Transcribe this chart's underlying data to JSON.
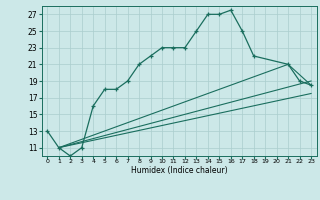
{
  "xlabel": "Humidex (Indice chaleur)",
  "background_color": "#cce8e8",
  "grid_color": "#aacece",
  "line_color": "#1a6e5e",
  "xlim": [
    -0.5,
    23.5
  ],
  "ylim": [
    10.0,
    28.0
  ],
  "yticks": [
    11,
    13,
    15,
    17,
    19,
    21,
    23,
    25,
    27
  ],
  "xticks": [
    0,
    1,
    2,
    3,
    4,
    5,
    6,
    7,
    8,
    9,
    10,
    11,
    12,
    13,
    14,
    15,
    16,
    17,
    18,
    19,
    20,
    21,
    22,
    23
  ],
  "main_x": [
    0,
    1,
    2,
    3,
    4,
    5,
    6,
    7,
    8,
    9,
    10,
    11,
    12,
    13,
    14,
    15,
    16,
    17,
    18,
    21,
    22,
    23
  ],
  "main_y": [
    13,
    11,
    10,
    11,
    16,
    18,
    18,
    19,
    21,
    22,
    23,
    23,
    23,
    25,
    27,
    27,
    27.5,
    25,
    22,
    21,
    19,
    18.5
  ],
  "line2_x": [
    1,
    23
  ],
  "line2_y": [
    11,
    19
  ],
  "line3_x": [
    1,
    21,
    23
  ],
  "line3_y": [
    11,
    21,
    18.5
  ],
  "line4_x": [
    1,
    23
  ],
  "line4_y": [
    11,
    17.5
  ]
}
